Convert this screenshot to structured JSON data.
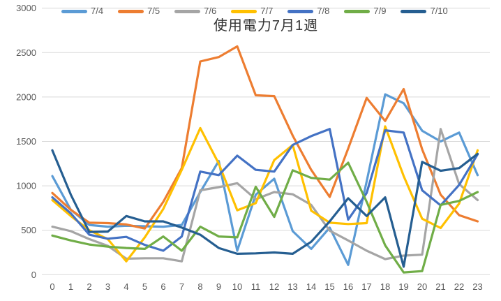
{
  "chart_data": {
    "type": "line",
    "title": "使用電力7月1週",
    "xlabel": "",
    "ylabel": "",
    "x": [
      0,
      1,
      2,
      3,
      4,
      5,
      6,
      7,
      8,
      9,
      10,
      11,
      12,
      13,
      14,
      15,
      16,
      17,
      18,
      19,
      20,
      21,
      22,
      23
    ],
    "ylim": [
      0,
      3000
    ],
    "ytick_step": 500,
    "grid": true,
    "legend_position": "top",
    "grid_color": "#D9D9D9",
    "axis_text_color": "#595959",
    "title_color": "#333333",
    "series": [
      {
        "name": "7/4",
        "color": "#5B9BD5",
        "values": [
          1110,
          730,
          560,
          540,
          550,
          545,
          540,
          560,
          930,
          1280,
          270,
          900,
          1080,
          490,
          290,
          530,
          110,
          1050,
          2030,
          1930,
          1620,
          1500,
          1600,
          1120
        ]
      },
      {
        "name": "7/5",
        "color": "#ED7D31",
        "values": [
          920,
          730,
          585,
          580,
          565,
          520,
          820,
          1200,
          2400,
          2450,
          2570,
          2020,
          2010,
          1565,
          1180,
          875,
          1420,
          1990,
          1730,
          2090,
          1410,
          900,
          670,
          600
        ]
      },
      {
        "name": "7/6",
        "color": "#A5A5A5",
        "values": [
          540,
          490,
          400,
          325,
          180,
          185,
          185,
          150,
          950,
          985,
          1030,
          850,
          930,
          905,
          785,
          495,
          385,
          270,
          175,
          215,
          225,
          1640,
          1020,
          840
        ]
      },
      {
        "name": "7/7",
        "color": "#FFC000",
        "values": [
          840,
          660,
          500,
          400,
          150,
          420,
          740,
          1180,
          1650,
          1250,
          725,
          805,
          1290,
          1460,
          720,
          585,
          570,
          580,
          1670,
          1110,
          630,
          525,
          800,
          1400
        ]
      },
      {
        "name": "7/8",
        "color": "#4472C4",
        "values": [
          870,
          690,
          450,
          405,
          425,
          335,
          270,
          430,
          1160,
          1120,
          1340,
          1180,
          1160,
          1460,
          1560,
          1640,
          620,
          920,
          1625,
          1600,
          950,
          780,
          1010,
          1355
        ]
      },
      {
        "name": "7/9",
        "color": "#70AD47",
        "values": [
          440,
          385,
          340,
          315,
          300,
          290,
          430,
          270,
          540,
          430,
          420,
          990,
          650,
          1175,
          1090,
          1070,
          1260,
          820,
          330,
          25,
          40,
          785,
          830,
          930
        ]
      },
      {
        "name": "7/10",
        "color": "#255E91",
        "values": [
          1400,
          900,
          480,
          485,
          660,
          600,
          600,
          530,
          450,
          300,
          235,
          240,
          250,
          235,
          370,
          600,
          860,
          660,
          870,
          90,
          1270,
          1170,
          1200,
          1360
        ]
      }
    ]
  }
}
